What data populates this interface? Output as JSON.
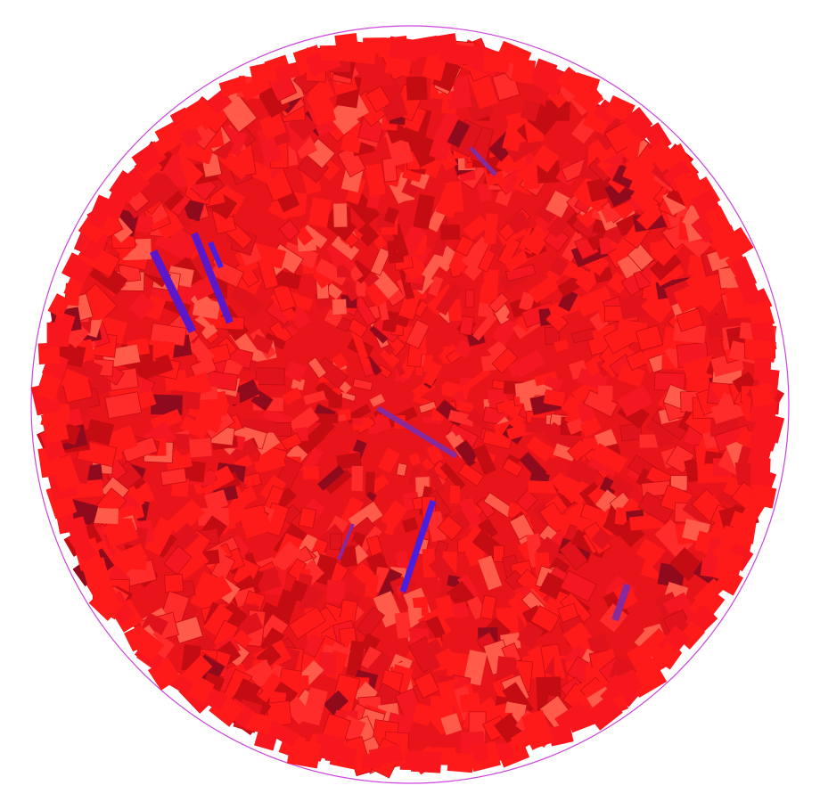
{
  "scene": {
    "background": "#ffffff",
    "boundary_color": "#cc44dd",
    "particle_color_primary": "#ff1a1a",
    "particle_color_shadow": "#c40c12",
    "particle_color_highlight": "#ff5a4a",
    "particle_color_dark": "#8e0a1c",
    "accent_color_blue": "#4a1ee0",
    "accent_color_purple": "#8a2a9a",
    "outlier_color": "#5a18c8"
  }
}
